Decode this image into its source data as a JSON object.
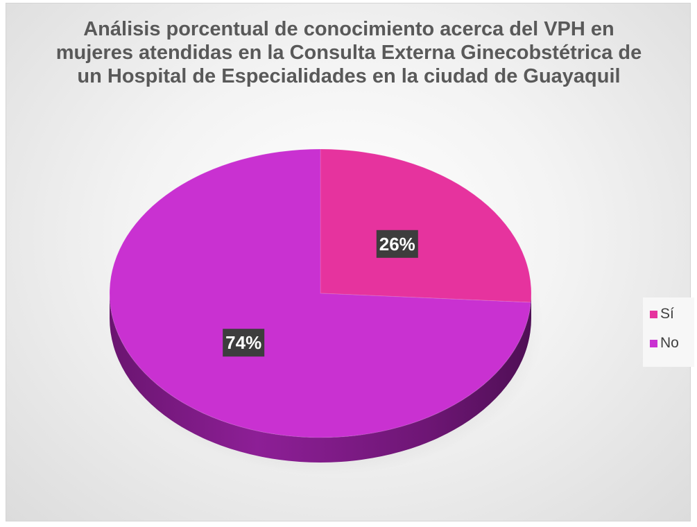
{
  "chart_data": {
    "type": "pie",
    "title": "Análisis porcentual de conocimiento acerca del VPH en mujeres atendidas en la Consulta Externa Ginecobstétrica de un Hospital de Especialidades en la ciudad de Guayaquil",
    "categories": [
      "Sí",
      "No"
    ],
    "values": [
      26,
      74
    ],
    "data_labels": [
      "26%",
      "74%"
    ],
    "colors": [
      "#E6339E",
      "#C931D1"
    ],
    "legend_position": "right",
    "style": "3d"
  }
}
